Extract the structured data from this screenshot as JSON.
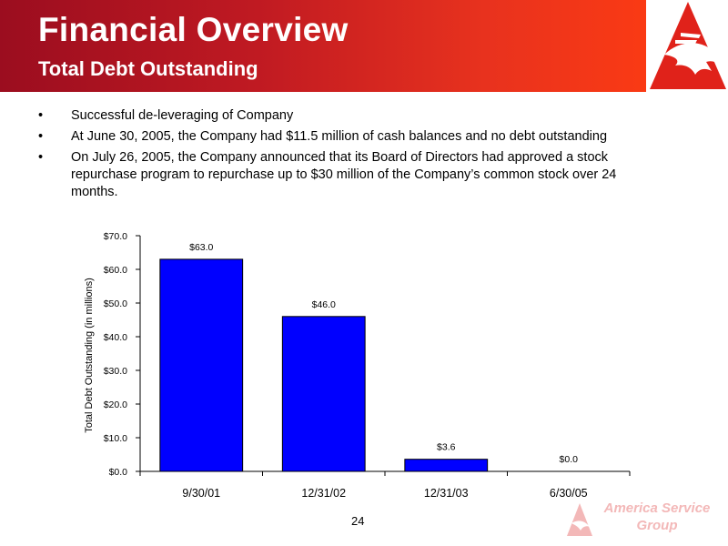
{
  "header": {
    "title": "Financial Overview",
    "subtitle": "Total Debt Outstanding"
  },
  "bullets": [
    "Successful de-leveraging of Company",
    "At June 30, 2005, the Company had $11.5 million of cash balances and no debt outstanding",
    "On July 26, 2005, the Company announced that its Board of Directors had approved a stock repurchase program to repurchase up to $30 million of the Company’s common stock over 24 months."
  ],
  "bullet_symbol": "•",
  "chart_data": {
    "type": "bar",
    "categories": [
      "9/30/01",
      "12/31/02",
      "12/31/03",
      "6/30/05"
    ],
    "values": [
      63.0,
      46.0,
      3.6,
      0.0
    ],
    "data_labels": [
      "$63.0",
      "$46.0",
      "$3.6",
      "$0.0"
    ],
    "ylabel": "Total Debt Outstanding (in millions)",
    "xlabel": "",
    "ylim": [
      0,
      70
    ],
    "yticks": [
      0,
      10,
      20,
      30,
      40,
      50,
      60,
      70
    ],
    "ytick_labels": [
      "$0.0",
      "$10.0",
      "$20.0",
      "$30.0",
      "$40.0",
      "$50.0",
      "$60.0",
      "$70.0"
    ],
    "grid": false,
    "bar_color": "#0000ff"
  },
  "footer": {
    "page_number": "24",
    "logo_line1": "America Service",
    "logo_line2": "Group"
  },
  "colors": {
    "header_start": "#9b0d1f",
    "header_end": "#fa3a14",
    "logo_red": "#e0221a",
    "logo_faded": "#f3b8b8"
  }
}
